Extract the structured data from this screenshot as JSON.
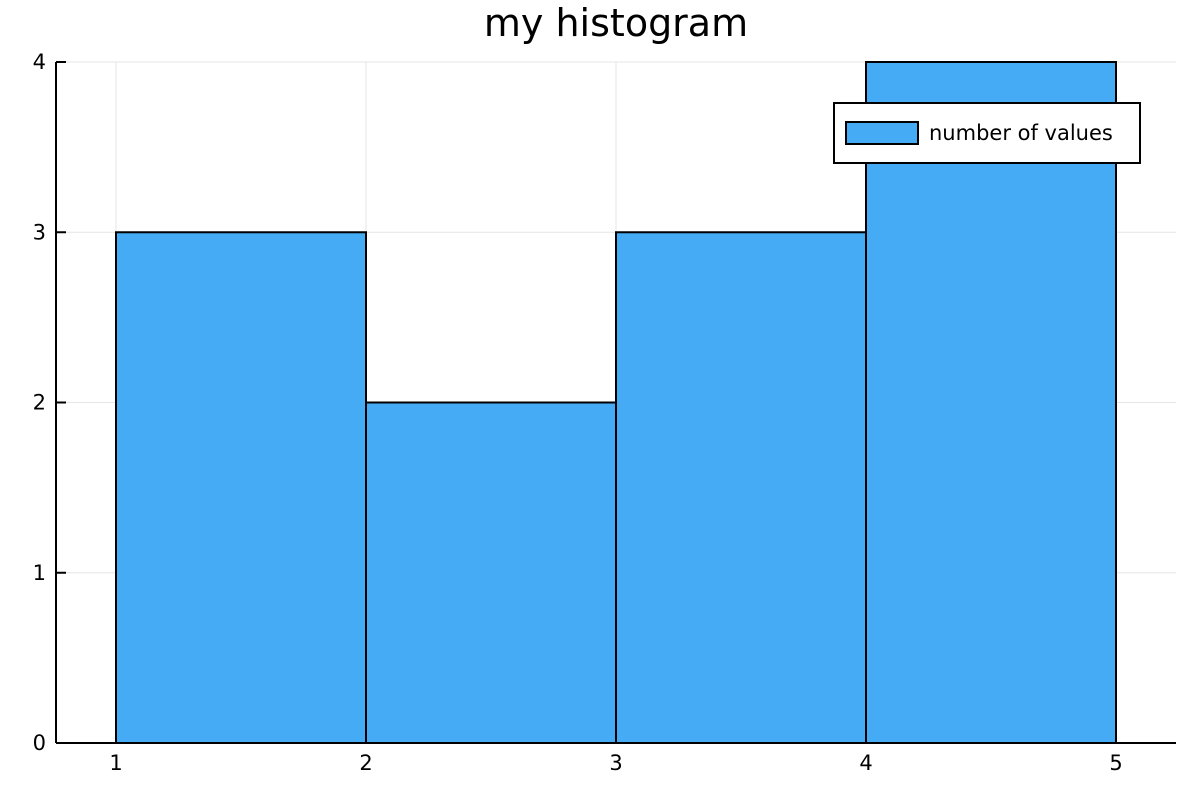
{
  "chart_data": {
    "type": "bar",
    "title": "my histogram",
    "xlabel": "",
    "ylabel": "",
    "bins": [
      {
        "start": 1,
        "end": 2,
        "count": 3
      },
      {
        "start": 2,
        "end": 3,
        "count": 2
      },
      {
        "start": 3,
        "end": 4,
        "count": 3
      },
      {
        "start": 4,
        "end": 5,
        "count": 4
      }
    ],
    "series": [
      {
        "name": "number of values",
        "values": [
          3,
          2,
          3,
          4
        ]
      }
    ],
    "xticks": [
      "1",
      "2",
      "3",
      "4",
      "5"
    ],
    "yticks": [
      "0",
      "1",
      "2",
      "3",
      "4"
    ],
    "xlim": [
      0.76,
      5.24
    ],
    "ylim": [
      0,
      4
    ],
    "grid": true,
    "legend_position": "top-right",
    "bar_color": "#44abf4",
    "edge_color": "#000000"
  }
}
